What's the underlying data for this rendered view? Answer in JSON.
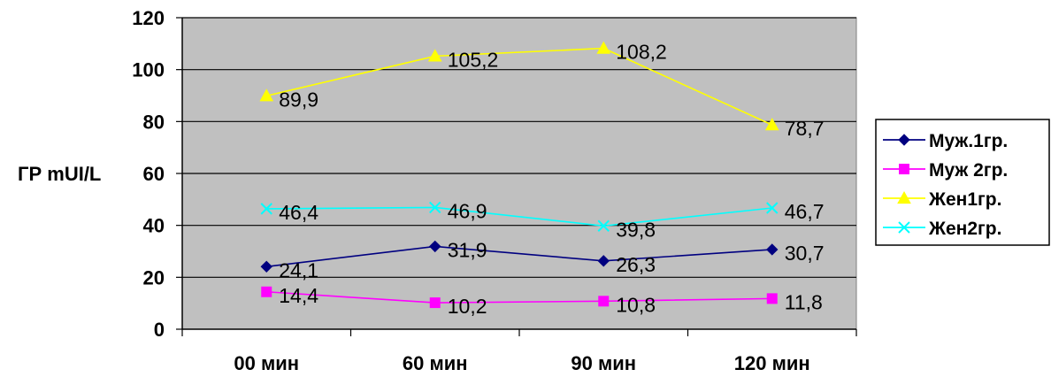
{
  "chart_data": {
    "type": "line",
    "title": "",
    "xlabel": "",
    "ylabel": "ГР mUI/L",
    "categories": [
      "00 мин",
      "60 мин",
      "90 мин",
      "120 мин"
    ],
    "ylim": [
      0,
      120
    ],
    "yticks": [
      0,
      20,
      40,
      60,
      80,
      100,
      120
    ],
    "grid": true,
    "legend_position": "right",
    "plot_background": "#c0c0c0",
    "series": [
      {
        "name": "Муж.1гр.",
        "values": [
          24.1,
          31.9,
          26.3,
          30.7
        ],
        "labels": [
          "24,1",
          "31,9",
          "26,3",
          "30,7"
        ],
        "color": "#000080",
        "marker": "diamond"
      },
      {
        "name": "Муж 2гр.",
        "values": [
          14.4,
          10.2,
          10.8,
          11.8
        ],
        "labels": [
          "14,4",
          "10,2",
          "10,8",
          "11,8"
        ],
        "color": "#ff00ff",
        "marker": "square"
      },
      {
        "name": "Жен1гр.",
        "values": [
          89.9,
          105.2,
          108.2,
          78.7
        ],
        "labels": [
          "89,9",
          "105,2",
          "108,2",
          "78,7"
        ],
        "color": "#ffff00",
        "marker": "triangle"
      },
      {
        "name": "Жен2гр.",
        "values": [
          46.4,
          46.9,
          39.8,
          46.7
        ],
        "labels": [
          "46,4",
          "46,9",
          "39,8",
          "46,7"
        ],
        "color": "#00ffff",
        "marker": "x"
      }
    ]
  }
}
